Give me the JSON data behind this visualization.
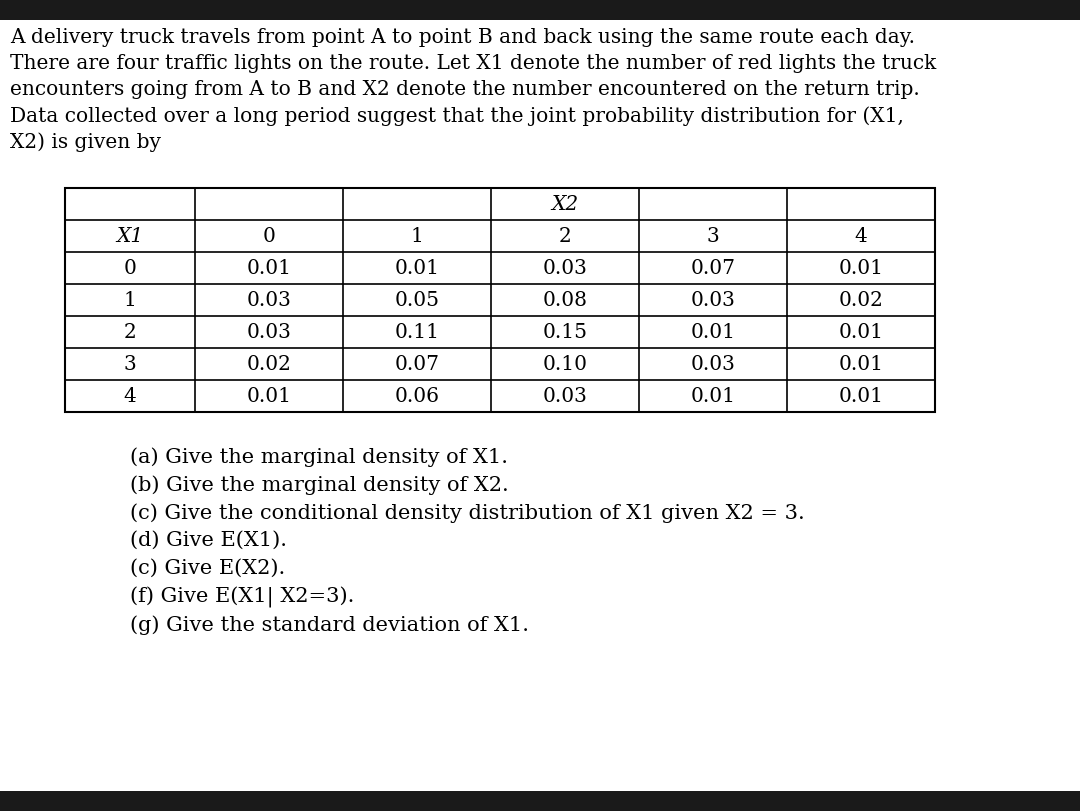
{
  "bg_color": "#1a1a1a",
  "content_bg": "#ffffff",
  "intro_lines": [
    "A delivery truck travels from point A to point B and back using the same route each day.",
    "There are four traffic lights on the route. Let X1 denote the number of red lights the truck",
    "encounters going from A to B and X2 denote the number encountered on the return trip.",
    "Data collected over a long period suggest that the joint probability distribution for (X1,",
    "X2) is given by"
  ],
  "table": {
    "x2_header": "X2",
    "x1_label": "X1",
    "col_headers": [
      "0",
      "1",
      "2",
      "3",
      "4"
    ],
    "row_headers": [
      "0",
      "1",
      "2",
      "3",
      "4"
    ],
    "data": [
      [
        "0.01",
        "0.01",
        "0.03",
        "0.07",
        "0.01"
      ],
      [
        "0.03",
        "0.05",
        "0.08",
        "0.03",
        "0.02"
      ],
      [
        "0.03",
        "0.11",
        "0.15",
        "0.01",
        "0.01"
      ],
      [
        "0.02",
        "0.07",
        "0.10",
        "0.03",
        "0.01"
      ],
      [
        "0.01",
        "0.06",
        "0.03",
        "0.01",
        "0.01"
      ]
    ]
  },
  "questions": [
    "(a) Give the marginal density of X1.",
    "(b) Give the marginal density of X2.",
    "(c) Give the conditional density distribution of X1 given X2 = 3.",
    "(d) Give E(X1).",
    "(c) Give E(X2).",
    "(f) Give E(X1| X2=3).",
    "(g) Give the standard deviation of X1."
  ],
  "font_size": 14.5,
  "table_font_size": 14.5,
  "q_font_size": 15.0
}
